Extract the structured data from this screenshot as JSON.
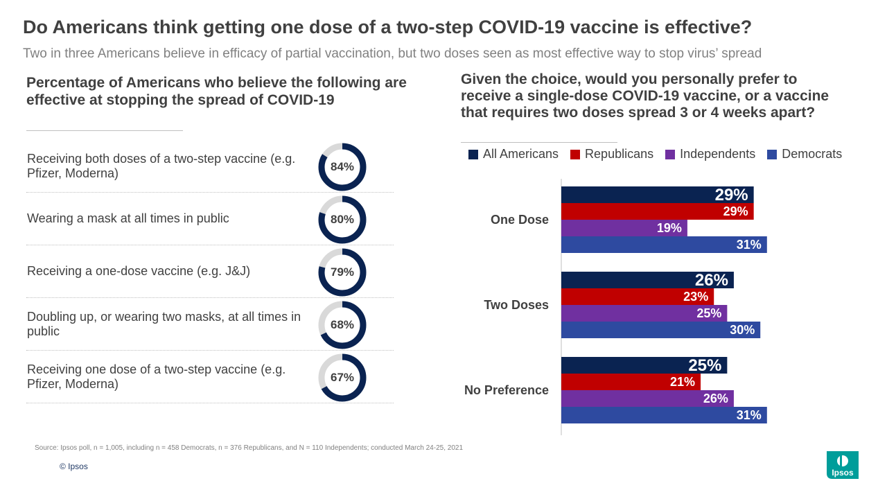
{
  "header": {
    "title": "Do Americans think getting one dose of a two-step COVID-19 vaccine is effective?",
    "subtitle": "Two in three Americans believe in efficacy of partial vaccination, but two doses seen as most effective way to stop virus’ spread"
  },
  "left_panel": {
    "heading": "Percentage of Americans who believe the following are effective at stopping the spread of COVID-19",
    "items": [
      {
        "label": "Receiving both doses of a two-step vaccine (e.g. Pfizer, Moderna)",
        "value": 84,
        "value_label": "84%"
      },
      {
        "label": "Wearing a mask at all times in public",
        "value": 80,
        "value_label": "80%"
      },
      {
        "label": "Receiving a one-dose vaccine (e.g. J&J)",
        "value": 79,
        "value_label": "79%"
      },
      {
        "label": "Doubling up, or wearing two masks, at all times in public",
        "value": 68,
        "value_label": "68%"
      },
      {
        "label": "Receiving one dose of a two-step vaccine (e.g. Pfizer, Moderna)",
        "value": 67,
        "value_label": "67%"
      }
    ],
    "colors": {
      "filled": "#0a2351",
      "empty": "#d9d9d9"
    }
  },
  "right_panel": {
    "heading": "Given the choice, would you personally prefer to receive a single-dose COVID-19 vaccine, or a vaccine that requires two doses spread 3 or 4 weeks apart?"
  },
  "chart_data": [
    {
      "type": "donut",
      "categories": [
        "Receiving both doses of a two-step vaccine (e.g. Pfizer, Moderna)",
        "Wearing a mask at all times in public",
        "Receiving a one-dose vaccine (e.g. J&J)",
        "Doubling up, or wearing two masks, at all times in public",
        "Receiving one dose of a two-step vaccine (e.g. Pfizer, Moderna)"
      ],
      "values": [
        84,
        80,
        79,
        68,
        67
      ],
      "title": "Percentage of Americans who believe the following are effective at stopping the spread of COVID-19"
    },
    {
      "type": "bar",
      "orientation": "horizontal",
      "title": "Given the choice, would you personally prefer to receive a single-dose COVID-19 vaccine, or a vaccine that requires two doses spread 3 or 4 weeks apart?",
      "categories": [
        "One Dose",
        "Two Doses",
        "No Preference"
      ],
      "series": [
        {
          "name": "All Americans",
          "color": "#0a2351",
          "values": [
            29,
            26,
            25
          ]
        },
        {
          "name": "Republicans",
          "color": "#c00000",
          "values": [
            29,
            23,
            21
          ]
        },
        {
          "name": "Independents",
          "color": "#7030a0",
          "values": [
            19,
            25,
            26
          ]
        },
        {
          "name": "Democrats",
          "color": "#2e4aa0",
          "values": [
            31,
            30,
            31
          ]
        }
      ],
      "value_suffix": "%",
      "xlim": [
        0,
        47
      ],
      "grid": false,
      "legend_position": "top"
    }
  ],
  "footer": {
    "source": "Source: Ipsos poll, n = 1,005, including n = 458 Democrats, n = 376 Republicans, and N = 110 Independents; conducted March 24-25, 2021",
    "copyright": "© Ipsos",
    "logo_text": "Ipsos",
    "logo_color": "#009d9a"
  }
}
